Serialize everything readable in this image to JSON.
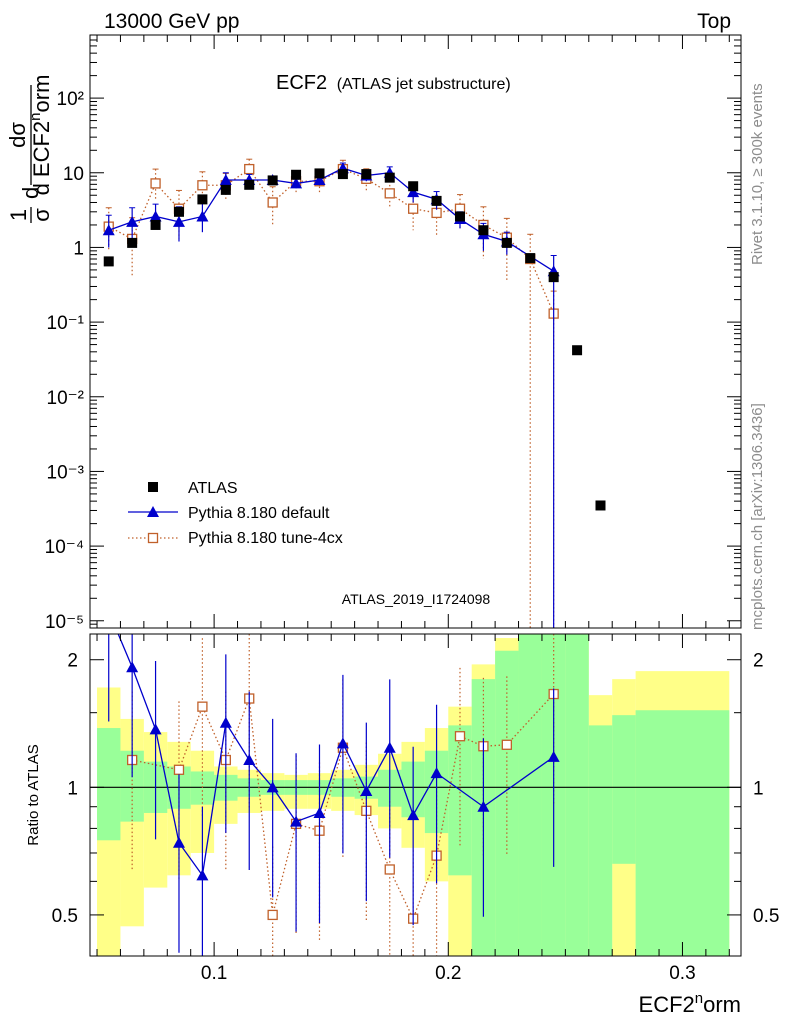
{
  "header": {
    "left": "13000 GeV pp",
    "right": "Top"
  },
  "side_labels": {
    "rivet": "Rivet 3.1.10, ≥ 300k events",
    "mcplots": "mcplots.cern.ch [arXiv:1306.3436]"
  },
  "chart_data": [
    {
      "type": "scatter",
      "panel": "main",
      "title_main": "ECF2",
      "title_sub": "(ATLAS jet substructure)",
      "watermark": "ATLAS_2019_I1724098",
      "ylabel": "1/σ dσ/d ECF2^norm",
      "y_scale": "log",
      "xlim": [
        0.047,
        0.325
      ],
      "ylim": [
        8e-06,
        700
      ],
      "y_tick_labels": [
        "10⁻⁵",
        "10⁻⁴",
        "10⁻³",
        "10⁻²",
        "10⁻¹",
        "1",
        "10",
        "10²"
      ],
      "legend_position": "bottom-left",
      "series": [
        {
          "name": "ATLAS",
          "color": "#000000",
          "marker": "filled-square",
          "x": [
            0.055,
            0.065,
            0.075,
            0.085,
            0.095,
            0.105,
            0.115,
            0.125,
            0.135,
            0.145,
            0.155,
            0.165,
            0.175,
            0.185,
            0.195,
            0.205,
            0.215,
            0.225,
            0.235,
            0.245,
            0.255,
            0.265,
            0.295
          ],
          "y": [
            0.65,
            1.15,
            2.0,
            3.0,
            4.4,
            5.9,
            6.9,
            7.9,
            9.4,
            9.8,
            9.6,
            9.6,
            8.6,
            6.6,
            4.2,
            2.6,
            1.7,
            1.15,
            0.72,
            0.4,
            0.042,
            0.00035,
            null
          ]
        },
        {
          "name": "Pythia 8.180 default",
          "color": "#0000cc",
          "marker": "filled-triangle",
          "x": [
            0.055,
            0.065,
            0.075,
            0.085,
            0.095,
            0.105,
            0.115,
            0.125,
            0.135,
            0.145,
            0.155,
            0.165,
            0.175,
            0.185,
            0.195,
            0.205,
            0.215,
            0.225,
            0.245
          ],
          "y": [
            1.7,
            2.2,
            2.6,
            2.2,
            2.6,
            8.0,
            8.0,
            8.0,
            7.2,
            8.0,
            11.5,
            9.2,
            10.0,
            5.5,
            4.4,
            2.4,
            1.5,
            1.2,
            0.48
          ],
          "y_err_low": [
            0.7,
            0.9,
            0.8,
            1.0,
            1.0,
            2.0,
            1.5,
            1.0,
            1.0,
            1.2,
            2.0,
            1.5,
            2.0,
            1.5,
            1.2,
            0.6,
            0.6,
            0.4,
            0.48
          ],
          "y_err_high": [
            1.0,
            1.2,
            1.2,
            1.3,
            1.5,
            2.0,
            1.5,
            1.0,
            1.0,
            1.2,
            2.0,
            1.5,
            2.0,
            1.5,
            1.2,
            0.6,
            0.6,
            0.4,
            0.3
          ]
        },
        {
          "name": "Pythia 8.180 tune-4cx",
          "color": "#c0602a",
          "marker": "open-square",
          "x": [
            0.055,
            0.065,
            0.075,
            0.085,
            0.095,
            0.105,
            0.115,
            0.125,
            0.135,
            0.145,
            0.155,
            0.165,
            0.175,
            0.185,
            0.195,
            0.205,
            0.215,
            0.225,
            0.235,
            0.245,
            0.255,
            0.265,
            0.295
          ],
          "y": [
            1.9,
            1.3,
            7.2,
            3.3,
            6.8,
            6.8,
            11.2,
            4.0,
            7.7,
            7.7,
            11.2,
            8.3,
            5.3,
            3.3,
            2.9,
            3.3,
            2.0,
            1.35,
            0.7,
            0.13,
            null,
            null,
            null
          ],
          "y_err_low": [
            1.0,
            0.9,
            3.0,
            2.0,
            3.0,
            2.5,
            3.0,
            2.0,
            2.5,
            2.5,
            3.0,
            2.5,
            2.0,
            1.6,
            1.5,
            1.6,
            1.3,
            1.0,
            0.7,
            0.13
          ],
          "y_err_high": [
            1.5,
            1.2,
            4.0,
            2.5,
            3.5,
            3.0,
            4.0,
            2.5,
            3.0,
            3.0,
            3.5,
            3.0,
            2.5,
            2.0,
            1.8,
            1.8,
            1.5,
            1.1,
            0.8,
            0.13
          ]
        }
      ]
    },
    {
      "type": "line",
      "panel": "ratio",
      "ylabel": "Ratio to ATLAS",
      "xlabel": "ECF2^norm",
      "xlim": [
        0.047,
        0.325
      ],
      "ylim": [
        0.4,
        2.3
      ],
      "x_tick_labels": [
        "0.1",
        "0.2",
        "0.3"
      ],
      "y_tick_labels": [
        "0.5",
        "1",
        "2"
      ],
      "reference_line": 1,
      "bands": {
        "bins": [
          [
            0.05,
            0.06,
            0.36,
            1.72,
            0.75,
            1.38
          ],
          [
            0.06,
            0.07,
            0.47,
            1.45,
            0.83,
            1.22
          ],
          [
            0.07,
            0.08,
            0.58,
            1.35,
            0.87,
            1.15
          ],
          [
            0.08,
            0.09,
            0.62,
            1.28,
            0.89,
            1.12
          ],
          [
            0.09,
            0.1,
            0.7,
            1.22,
            0.91,
            1.09
          ],
          [
            0.1,
            0.11,
            0.82,
            1.12,
            0.93,
            1.07
          ],
          [
            0.11,
            0.12,
            0.87,
            1.1,
            0.95,
            1.05
          ],
          [
            0.12,
            0.13,
            0.88,
            1.08,
            0.96,
            1.04
          ],
          [
            0.13,
            0.14,
            0.89,
            1.07,
            0.96,
            1.04
          ],
          [
            0.14,
            0.15,
            0.89,
            1.08,
            0.96,
            1.04
          ],
          [
            0.15,
            0.16,
            0.88,
            1.1,
            0.95,
            1.05
          ],
          [
            0.16,
            0.17,
            0.86,
            1.13,
            0.94,
            1.06
          ],
          [
            0.17,
            0.18,
            0.8,
            1.2,
            0.9,
            1.1
          ],
          [
            0.18,
            0.19,
            0.72,
            1.28,
            0.85,
            1.15
          ],
          [
            0.19,
            0.2,
            0.6,
            1.38,
            0.78,
            1.22
          ],
          [
            0.2,
            0.21,
            0.38,
            1.55,
            0.62,
            1.4
          ],
          [
            0.21,
            0.22,
            0.36,
            1.95,
            0.38,
            1.8
          ],
          [
            0.22,
            0.23,
            0.36,
            2.25,
            0.36,
            2.1
          ],
          [
            0.23,
            0.24,
            0.36,
            2.3,
            0.36,
            2.3
          ],
          [
            0.24,
            0.25,
            0.36,
            2.3,
            0.36,
            2.3
          ],
          [
            0.25,
            0.26,
            0.36,
            2.3,
            0.36,
            2.3
          ],
          [
            0.26,
            0.27,
            0.36,
            1.65,
            0.36,
            1.4
          ],
          [
            0.27,
            0.28,
            0.36,
            1.8,
            0.66,
            1.48
          ],
          [
            0.28,
            0.32,
            0.36,
            1.88,
            0.36,
            1.52
          ]
        ],
        "colors": {
          "outer": "#ffff88",
          "inner": "#99ff99"
        }
      },
      "series": [
        {
          "name": "Pythia 8.180 default",
          "color": "#0000cc",
          "x": [
            0.055,
            0.065,
            0.075,
            0.085,
            0.095,
            0.105,
            0.115,
            0.125,
            0.135,
            0.145,
            0.155,
            0.165,
            0.175,
            0.185,
            0.195,
            0.215,
            0.245
          ],
          "y": [
            2.6,
            1.92,
            1.37,
            0.74,
            0.62,
            1.42,
            1.16,
            1.0,
            0.83,
            0.87,
            1.27,
            0.98,
            1.24,
            0.86,
            1.08,
            0.9,
            1.18
          ]
        },
        {
          "name": "Pythia 8.180 tune-4cx",
          "color": "#c0602a",
          "x": [
            0.065,
            0.085,
            0.095,
            0.105,
            0.115,
            0.125,
            0.135,
            0.145,
            0.155,
            0.165,
            0.175,
            0.185,
            0.195,
            0.205,
            0.215,
            0.225,
            0.245
          ],
          "y": [
            1.16,
            1.1,
            1.55,
            1.16,
            1.62,
            0.5,
            0.82,
            0.79,
            1.24,
            0.88,
            0.64,
            0.49,
            0.69,
            1.32,
            1.25,
            1.26,
            1.66
          ]
        }
      ]
    }
  ]
}
